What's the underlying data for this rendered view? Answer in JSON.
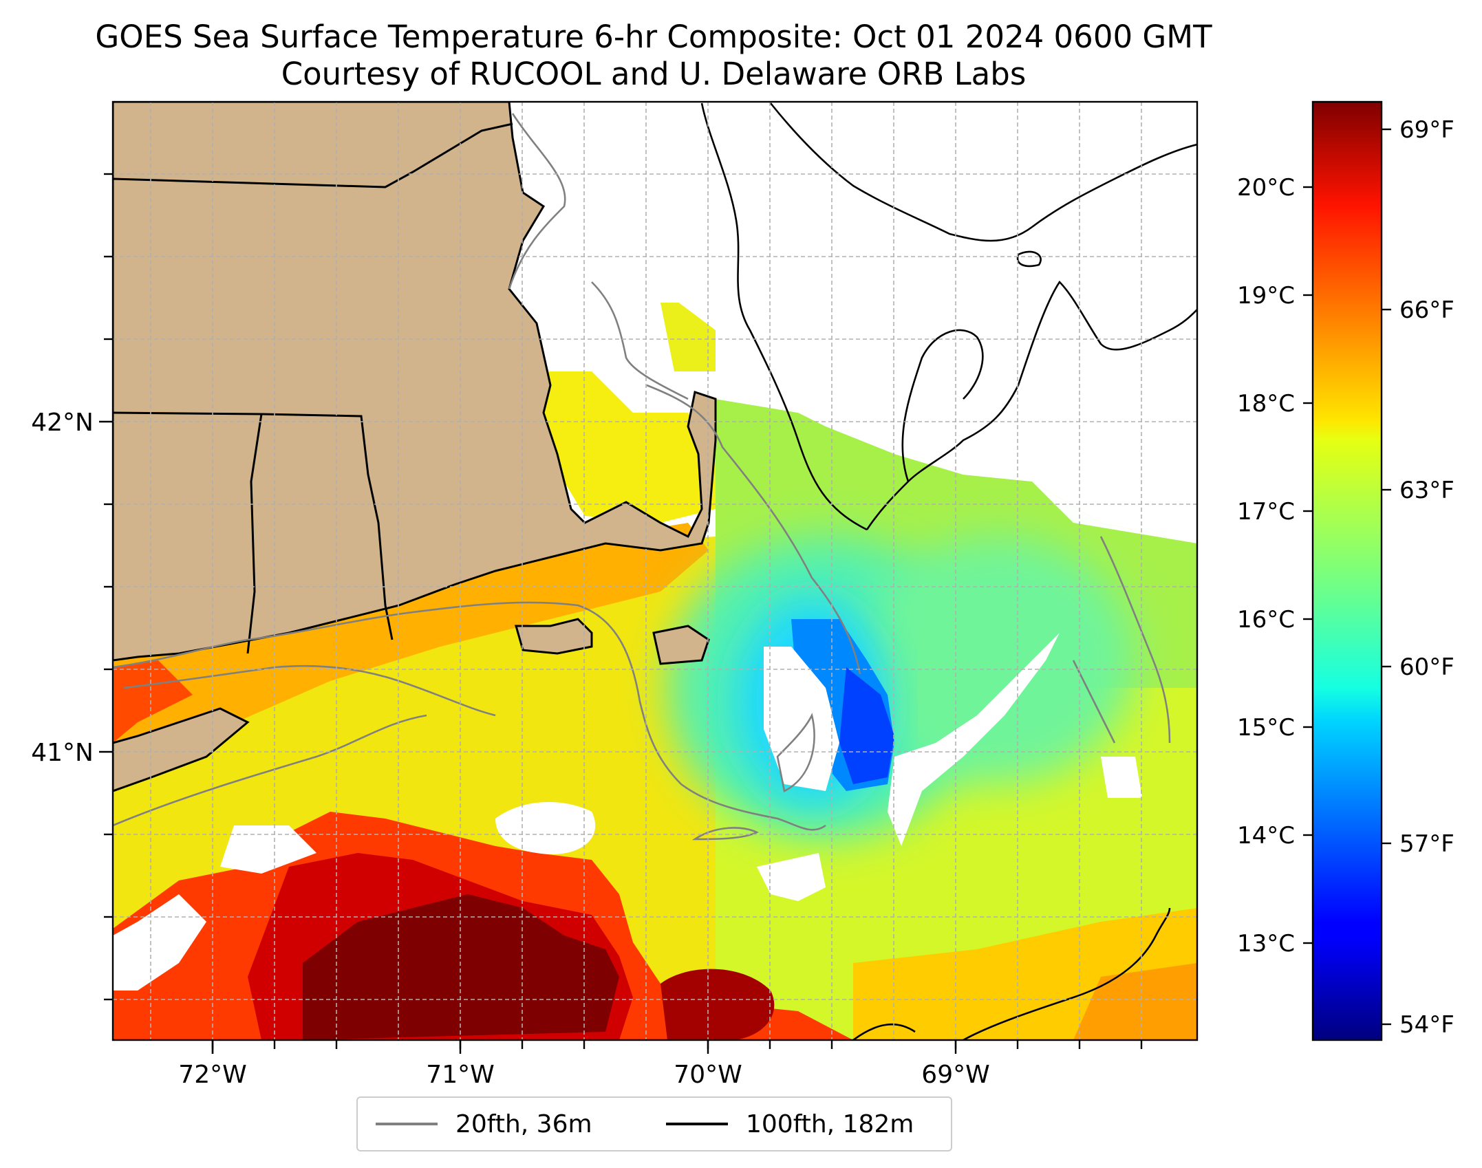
{
  "title": {
    "line1": "GOES Sea Surface Temperature 6-hr Composite: Oct 01 2024 0600 GMT",
    "line2": "Courtesy of RUCOOL and U. Delaware ORB Labs"
  },
  "map": {
    "lon_range": [
      -72.4,
      -68.0
    ],
    "lat_range": [
      40.14,
      42.98
    ],
    "x_ticks": [
      "72°W",
      "71°W",
      "70°W",
      "69°W"
    ],
    "y_ticks": [
      "42°N",
      "41°N"
    ],
    "gridlines": true,
    "land_color": "#d2b48c",
    "no_data_color": "#ffffff"
  },
  "colorbar": {
    "colormap": "jet",
    "fahrenheit_ticks": [
      "69°F",
      "66°F",
      "63°F",
      "60°F",
      "57°F",
      "54°F"
    ],
    "celsius_ticks": [
      "20°C",
      "19°C",
      "18°C",
      "17°C",
      "16°C",
      "15°C",
      "14°C",
      "13°C"
    ]
  },
  "legend": {
    "placement": "bottom-center",
    "items": [
      {
        "label": "20fth, 36m",
        "color": "#808080"
      },
      {
        "label": "100fth, 182m",
        "color": "#000000"
      }
    ]
  }
}
